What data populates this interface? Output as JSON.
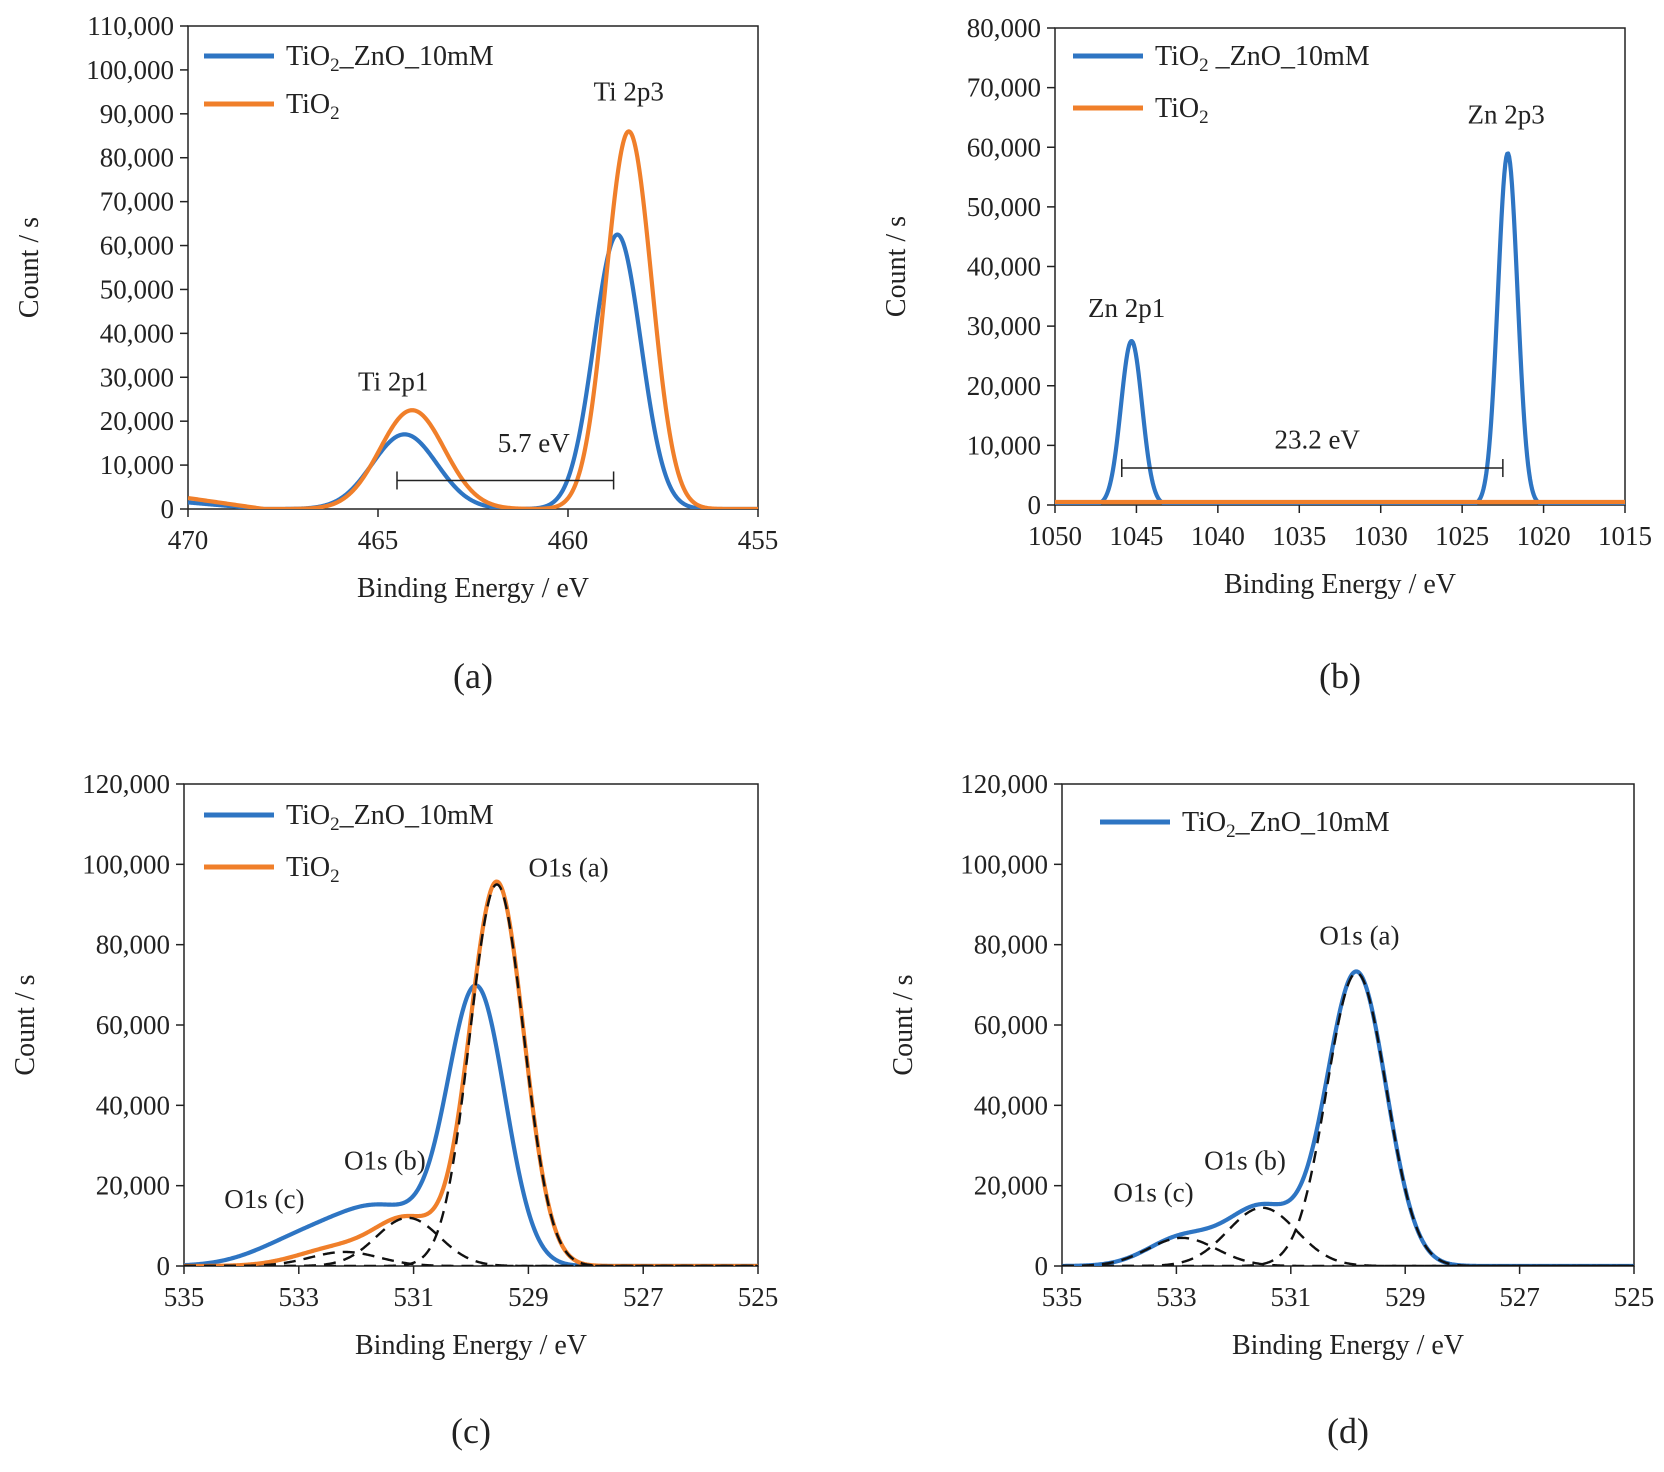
{
  "chart_data": [
    {
      "type": "line",
      "panel": "a",
      "caption": "(a)",
      "xlabel": "Binding Energy / eV",
      "ylabel": "Count / s",
      "xlim": [
        470,
        455
      ],
      "ylim": [
        0,
        110000
      ],
      "x_ticks": [
        470,
        465,
        460,
        455
      ],
      "x_tick_labels": [
        "470",
        "465",
        "460",
        "455"
      ],
      "y_ticks": [
        0,
        10000,
        20000,
        30000,
        40000,
        50000,
        60000,
        70000,
        80000,
        90000,
        100000,
        110000
      ],
      "y_tick_labels": [
        "0",
        "10,000",
        "20,000",
        "30,000",
        "40,000",
        "50,000",
        "60,000",
        "70,000",
        "80,000",
        "90,000",
        "100,000",
        "110,000"
      ],
      "legend": {
        "placement": "top-left",
        "entries": [
          {
            "series": 0,
            "text": "TiO",
            "sub": "2",
            "tail": "_ZnO_10mM"
          },
          {
            "series": 1,
            "text": "TiO",
            "sub": "2",
            "tail": ""
          }
        ]
      },
      "series": [
        {
          "name": "TiO2_ZnO_10mM",
          "color": "#2e75c3",
          "style": "solid",
          "baseline": [
            [
              470,
              1500
            ],
            [
              468,
              0
            ],
            [
              455,
              0
            ]
          ],
          "peaks": [
            {
              "center": 464.3,
              "height": 17000,
              "width": 0.85
            },
            {
              "center": 458.7,
              "height": 62500,
              "width": 0.62
            }
          ]
        },
        {
          "name": "TiO2",
          "color": "#f07f2a",
          "style": "solid",
          "baseline": [
            [
              470,
              2500
            ],
            [
              468,
              0
            ],
            [
              455,
              0
            ]
          ],
          "peaks": [
            {
              "center": 464.1,
              "height": 22500,
              "width": 0.85
            },
            {
              "center": 458.4,
              "height": 86000,
              "width": 0.6
            }
          ]
        }
      ],
      "annotations": [
        {
          "text": "Ti 2p3",
          "x": 458.4,
          "y": 93000
        },
        {
          "text": "Ti 2p1",
          "x": 464.6,
          "y": 27000
        },
        {
          "text": "5.7 eV",
          "x": 460.9,
          "y": 13000
        }
      ],
      "bracket": {
        "x1": 464.5,
        "x2": 458.8,
        "y": 6500
      }
    },
    {
      "type": "line",
      "panel": "b",
      "caption": "(b)",
      "xlabel": "Binding Energy / eV",
      "ylabel": "Count / s",
      "xlim": [
        1050,
        1015
      ],
      "ylim": [
        0,
        80000
      ],
      "x_ticks": [
        1050,
        1045,
        1040,
        1035,
        1030,
        1025,
        1020,
        1015
      ],
      "x_tick_labels": [
        "1050",
        "1045",
        "1040",
        "1035",
        "1030",
        "1025",
        "1020",
        "1015"
      ],
      "y_ticks": [
        0,
        10000,
        20000,
        30000,
        40000,
        50000,
        60000,
        70000,
        80000
      ],
      "y_tick_labels": [
        "0",
        "10,000",
        "20,000",
        "30,000",
        "40,000",
        "50,000",
        "60,000",
        "70,000",
        "80,000"
      ],
      "legend": {
        "placement": "top-left",
        "entries": [
          {
            "series": 0,
            "text": "TiO",
            "sub": "2",
            "tail": " _ZnO_10mM"
          },
          {
            "series": 1,
            "text": "TiO",
            "sub": "2",
            "tail": ""
          }
        ]
      },
      "series": [
        {
          "name": "TiO2_ZnO_10mM",
          "color": "#2e75c3",
          "style": "solid",
          "baseline": [
            [
              1050,
              0
            ],
            [
              1015,
              0
            ]
          ],
          "peaks": [
            {
              "center": 1045.3,
              "height": 27500,
              "width": 0.65
            },
            {
              "center": 1022.2,
              "height": 59000,
              "width": 0.6
            }
          ]
        },
        {
          "name": "TiO2",
          "color": "#f07f2a",
          "style": "solid",
          "baseline": [
            [
              1050,
              500
            ],
            [
              1015,
              500
            ]
          ],
          "peaks": []
        }
      ],
      "annotations": [
        {
          "text": "Zn 2p3",
          "x": 1022.3,
          "y": 64000
        },
        {
          "text": "Zn 2p1",
          "x": 1045.6,
          "y": 31500
        },
        {
          "text": "23.2 eV",
          "x": 1033.9,
          "y": 9500
        }
      ],
      "bracket": {
        "x1": 1045.9,
        "x2": 1022.5,
        "y": 6200
      }
    },
    {
      "type": "line",
      "panel": "c",
      "caption": "(c)",
      "xlabel": "Binding Energy / eV",
      "ylabel": "Count / s",
      "xlim": [
        535,
        525
      ],
      "ylim": [
        0,
        120000
      ],
      "x_ticks": [
        535,
        533,
        531,
        529,
        527,
        525
      ],
      "x_tick_labels": [
        "535",
        "533",
        "531",
        "529",
        "527",
        "525"
      ],
      "y_ticks": [
        0,
        20000,
        40000,
        60000,
        80000,
        100000,
        120000
      ],
      "y_tick_labels": [
        "0",
        "20,000",
        "40,000",
        "60,000",
        "80,000",
        "100,000",
        "120,000"
      ],
      "legend": {
        "placement": "top-left",
        "entries": [
          {
            "series": 0,
            "text": "TiO",
            "sub": "2",
            "tail": "_ZnO_10mM"
          },
          {
            "series": 1,
            "text": "TiO",
            "sub": "2",
            "tail": ""
          }
        ]
      },
      "series": [
        {
          "name": "TiO2_ZnO_10mM",
          "color": "#2e75c3",
          "style": "solid",
          "baseline": [
            [
              535,
              0
            ],
            [
              525,
              0
            ]
          ],
          "peaks": [
            {
              "center": 529.9,
              "height": 68000,
              "width": 0.5
            },
            {
              "center": 531.5,
              "height": 13500,
              "width": 0.8
            },
            {
              "center": 532.9,
              "height": 6500,
              "width": 0.8
            }
          ]
        },
        {
          "name": "TiO2",
          "color": "#f07f2a",
          "style": "solid",
          "baseline": [
            [
              535,
              0
            ],
            [
              525,
              0
            ]
          ],
          "peaks": [
            {
              "center": 529.55,
              "height": 95500,
              "width": 0.47
            },
            {
              "center": 531.1,
              "height": 11000,
              "width": 0.55
            },
            {
              "center": 532.3,
              "height": 4500,
              "width": 0.7
            }
          ]
        },
        {
          "name": "fit O1s (a)",
          "color": "#111111",
          "style": "dashed",
          "baseline": [
            [
              535,
              0
            ],
            [
              525,
              0
            ]
          ],
          "peaks": [
            {
              "center": 529.55,
              "height": 95000,
              "width": 0.47
            }
          ]
        },
        {
          "name": "fit O1s (b)",
          "color": "#111111",
          "style": "dashed",
          "baseline": [
            [
              535,
              0
            ],
            [
              525,
              0
            ]
          ],
          "peaks": [
            {
              "center": 531.1,
              "height": 12000,
              "width": 0.55
            }
          ]
        },
        {
          "name": "fit O1s (c)",
          "color": "#111111",
          "style": "dashed",
          "baseline": [
            [
              535,
              0
            ],
            [
              525,
              0
            ]
          ],
          "peaks": [
            {
              "center": 532.2,
              "height": 3500,
              "width": 0.6
            }
          ]
        }
      ],
      "annotations": [
        {
          "text": "O1s (a)",
          "x": 528.3,
          "y": 97000
        },
        {
          "text": "O1s (b)",
          "x": 531.5,
          "y": 24000
        },
        {
          "text": "O1s (c)",
          "x": 533.6,
          "y": 14500
        }
      ]
    },
    {
      "type": "line",
      "panel": "d",
      "caption": "(d)",
      "xlabel": "Binding Energy / eV",
      "ylabel": "Count / s",
      "xlim": [
        535,
        525
      ],
      "ylim": [
        0,
        120000
      ],
      "x_ticks": [
        535,
        533,
        531,
        529,
        527,
        525
      ],
      "x_tick_labels": [
        "535",
        "533",
        "531",
        "529",
        "527",
        "525"
      ],
      "y_ticks": [
        0,
        20000,
        40000,
        60000,
        80000,
        100000,
        120000
      ],
      "y_tick_labels": [
        "0",
        "20,000",
        "40,000",
        "60,000",
        "80,000",
        "100,000",
        "120,000"
      ],
      "legend": {
        "placement": "top-left",
        "entries": [
          {
            "series": 0,
            "text": "TiO",
            "sub": "2",
            "tail": "_ZnO_10mM"
          }
        ]
      },
      "series": [
        {
          "name": "TiO2_ZnO_10mM",
          "color": "#2e75c3",
          "style": "solid",
          "baseline": [
            [
              535,
              0
            ],
            [
              525,
              0
            ]
          ],
          "peaks": [
            {
              "center": 529.85,
              "height": 73000,
              "width": 0.52
            },
            {
              "center": 531.5,
              "height": 14500,
              "width": 0.6
            },
            {
              "center": 532.9,
              "height": 7000,
              "width": 0.6
            }
          ]
        },
        {
          "name": "fit O1s (a)",
          "color": "#111111",
          "style": "dashed",
          "baseline": [
            [
              535,
              0
            ],
            [
              525,
              0
            ]
          ],
          "peaks": [
            {
              "center": 529.85,
              "height": 73000,
              "width": 0.52
            }
          ]
        },
        {
          "name": "fit O1s (b)",
          "color": "#111111",
          "style": "dashed",
          "baseline": [
            [
              535,
              0
            ],
            [
              525,
              0
            ]
          ],
          "peaks": [
            {
              "center": 531.5,
              "height": 14500,
              "width": 0.6
            }
          ]
        },
        {
          "name": "fit O1s (c)",
          "color": "#111111",
          "style": "dashed",
          "baseline": [
            [
              535,
              0
            ],
            [
              525,
              0
            ]
          ],
          "peaks": [
            {
              "center": 532.9,
              "height": 7000,
              "width": 0.6
            }
          ]
        }
      ],
      "annotations": [
        {
          "text": "O1s (a)",
          "x": 529.8,
          "y": 80000
        },
        {
          "text": "O1s (b)",
          "x": 531.8,
          "y": 24000
        },
        {
          "text": "O1s (c)",
          "x": 533.4,
          "y": 16000
        }
      ]
    }
  ]
}
